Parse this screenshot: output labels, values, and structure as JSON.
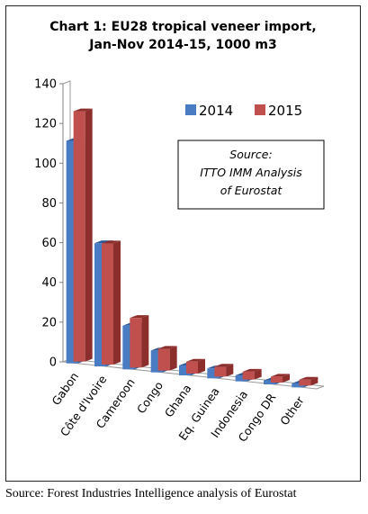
{
  "chart_data": {
    "type": "bar",
    "title_lines": [
      "Chart 1: EU28 tropical veneer import,",
      "Jan-Nov 2014-15, 1000 m3"
    ],
    "categories": [
      "Gabon",
      "Côte d'Ivoire",
      "Cameroon",
      "Congo",
      "Ghana",
      "Eq. Guinea",
      "Indonesia",
      "Congo DR",
      "Other"
    ],
    "series": [
      {
        "name": "2014",
        "values": [
          112,
          62,
          22,
          11,
          5,
          5,
          3,
          2,
          2
        ]
      },
      {
        "name": "2015",
        "values": [
          126,
          61,
          25,
          11,
          6,
          5,
          4,
          3,
          3
        ]
      }
    ],
    "ylim": [
      0,
      140
    ],
    "yticks": [
      0,
      20,
      40,
      60,
      80,
      100,
      120,
      140
    ],
    "xlabel": "",
    "ylabel": "",
    "legend_position": "top-right",
    "grid": false,
    "annotation_lines": [
      "Source:",
      "ITTO IMM Analysis",
      "of Eurostat"
    ],
    "colors": {
      "2014": "#4a7cc4",
      "2014_dark": "#2e5a9a",
      "2015": "#c0504d",
      "2015_dark": "#8c2f2c"
    }
  },
  "footer": {
    "source": "Source: Forest Industries Intelligence analysis of Eurostat"
  }
}
